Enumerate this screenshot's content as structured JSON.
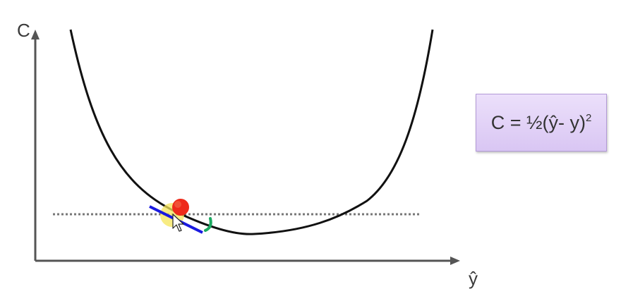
{
  "axes": {
    "y_label": "C",
    "x_label": "ŷ"
  },
  "formula": {
    "text": "C = ½(ŷ- y)",
    "exponent": "2"
  },
  "colors": {
    "curve": "#111111",
    "axis": "#555555",
    "dotted_line": "#777777",
    "tangent": "#1a1ae0",
    "ball": "#ee2a1a",
    "highlight": "#f5e65a",
    "step_marker": "#1aa860",
    "formula_box": "#e3d3f7"
  },
  "icons": {
    "ball": "red-ball-icon",
    "cursor": "mouse-cursor-icon",
    "step": "green-step-marker-icon"
  }
}
